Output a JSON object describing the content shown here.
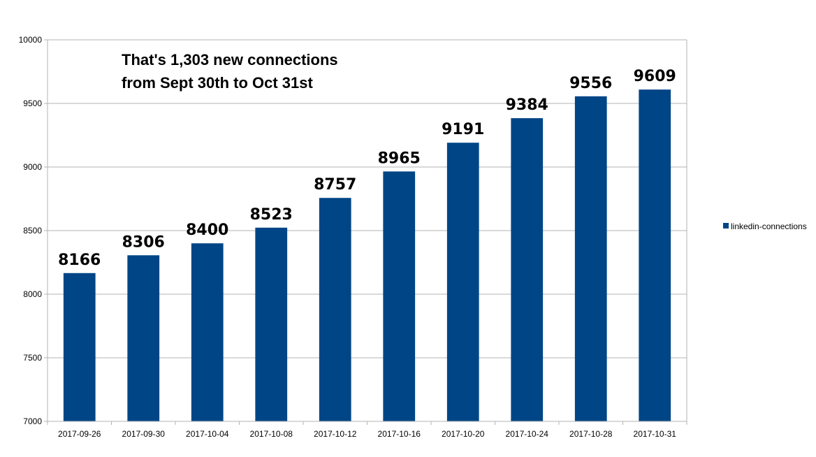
{
  "chart_data": {
    "type": "bar",
    "categories": [
      "2017-09-26",
      "2017-09-30",
      "2017-10-04",
      "2017-10-08",
      "2017-10-12",
      "2017-10-16",
      "2017-10-20",
      "2017-10-24",
      "2017-10-28",
      "2017-10-31"
    ],
    "series": [
      {
        "name": "linkedin-connections",
        "values": [
          8166,
          8306,
          8400,
          8523,
          8757,
          8965,
          9191,
          9384,
          9556,
          9609
        ]
      }
    ],
    "title": "",
    "xlabel": "",
    "ylabel": "",
    "ylim": [
      7000,
      10000
    ],
    "yticks": [
      7000,
      7500,
      8000,
      8500,
      9000,
      9500,
      10000
    ],
    "grid": true,
    "legend": "right",
    "bar_color": "#004586",
    "annotation": [
      "That's 1,303 new connections",
      "from Sept 30th to Oct 31st"
    ]
  }
}
